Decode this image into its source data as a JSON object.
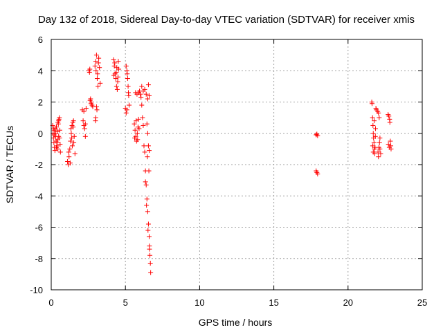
{
  "chart_data": {
    "type": "scatter",
    "title": "Day 132 of 2018, Sidereal Day-to-day VTEC variation (SDTVAR) for receiver xmis",
    "xlabel": "GPS time / hours",
    "ylabel": "SDTVAR / TECUs",
    "xlim": [
      0,
      25
    ],
    "ylim": [
      -10,
      6
    ],
    "xticks": [
      0,
      5,
      10,
      15,
      20,
      25
    ],
    "yticks": [
      -10,
      -8,
      -6,
      -4,
      -2,
      0,
      2,
      4,
      6
    ],
    "xtick_labels": [
      "0",
      "5",
      "10",
      "15",
      "20",
      "25"
    ],
    "ytick_labels": [
      "-10",
      "-8",
      "-6",
      "-4",
      "-2",
      "0",
      "2",
      "4",
      "6"
    ],
    "grid": true,
    "marker": "plus",
    "color": "#ff0000",
    "series": [
      {
        "name": "SDTVAR",
        "points": [
          [
            0.1,
            0.5
          ],
          [
            0.12,
            0.0
          ],
          [
            0.15,
            -0.3
          ],
          [
            0.18,
            -0.6
          ],
          [
            0.2,
            0.2
          ],
          [
            0.22,
            -0.9
          ],
          [
            0.25,
            -1.1
          ],
          [
            0.28,
            0.3
          ],
          [
            0.3,
            -0.2
          ],
          [
            0.33,
            -0.5
          ],
          [
            0.35,
            0.4
          ],
          [
            0.38,
            -0.8
          ],
          [
            0.4,
            0.1
          ],
          [
            0.42,
            -0.4
          ],
          [
            0.45,
            -1.0
          ],
          [
            0.48,
            0.6
          ],
          [
            0.5,
            0.8
          ],
          [
            0.52,
            0.9
          ],
          [
            0.55,
            1.0
          ],
          [
            0.57,
            -0.3
          ],
          [
            0.6,
            -0.7
          ],
          [
            0.62,
            -1.2
          ],
          [
            0.2,
            -0.1
          ],
          [
            0.3,
            0.0
          ],
          [
            0.4,
            -0.6
          ],
          [
            0.5,
            -0.2
          ],
          [
            0.58,
            0.2
          ],
          [
            0.45,
            0.7
          ],
          [
            0.15,
            0.3
          ],
          [
            0.35,
            -0.9
          ],
          [
            1.1,
            -1.8
          ],
          [
            1.15,
            -2.0
          ],
          [
            1.2,
            -1.5
          ],
          [
            1.25,
            -1.0
          ],
          [
            1.3,
            -0.5
          ],
          [
            1.35,
            0.0
          ],
          [
            1.4,
            0.5
          ],
          [
            1.45,
            0.7
          ],
          [
            1.5,
            0.8
          ],
          [
            1.55,
            -0.2
          ],
          [
            1.6,
            -1.3
          ],
          [
            1.28,
            -1.9
          ],
          [
            1.33,
            0.3
          ],
          [
            1.42,
            -0.8
          ],
          [
            1.48,
            0.4
          ],
          [
            1.52,
            -0.6
          ],
          [
            1.18,
            -1.2
          ],
          [
            1.38,
            -0.3
          ],
          [
            2.1,
            1.5
          ],
          [
            2.15,
            0.8
          ],
          [
            2.2,
            0.5
          ],
          [
            2.25,
            0.3
          ],
          [
            2.3,
            -0.2
          ],
          [
            2.35,
            1.6
          ],
          [
            2.2,
            1.4
          ],
          [
            2.3,
            0.6
          ],
          [
            2.55,
            4.0
          ],
          [
            2.58,
            3.9
          ],
          [
            2.6,
            4.1
          ],
          [
            2.65,
            2.2
          ],
          [
            2.7,
            2.0
          ],
          [
            2.75,
            1.8
          ],
          [
            2.8,
            1.7
          ],
          [
            2.68,
            1.9
          ],
          [
            2.62,
            2.1
          ],
          [
            2.95,
            4.3
          ],
          [
            3.0,
            4.6
          ],
          [
            3.05,
            5.0
          ],
          [
            3.1,
            3.5
          ],
          [
            3.15,
            3.0
          ],
          [
            3.05,
            1.7
          ],
          [
            3.0,
            1.0
          ],
          [
            2.98,
            0.8
          ],
          [
            3.08,
            1.5
          ],
          [
            3.12,
            3.8
          ],
          [
            3.2,
            4.8
          ],
          [
            3.25,
            4.2
          ],
          [
            3.3,
            3.2
          ],
          [
            3.02,
            4.0
          ],
          [
            3.18,
            4.5
          ],
          [
            4.2,
            4.7
          ],
          [
            4.25,
            4.3
          ],
          [
            4.3,
            3.8
          ],
          [
            4.35,
            3.5
          ],
          [
            4.4,
            3.0
          ],
          [
            4.45,
            2.8
          ],
          [
            4.5,
            3.6
          ],
          [
            4.55,
            4.1
          ],
          [
            4.28,
            4.5
          ],
          [
            4.38,
            3.9
          ],
          [
            4.48,
            3.3
          ],
          [
            4.52,
            4.6
          ],
          [
            4.22,
            3.7
          ],
          [
            4.42,
            4.2
          ],
          [
            5.05,
            4.3
          ],
          [
            5.1,
            4.0
          ],
          [
            5.15,
            3.5
          ],
          [
            5.18,
            3.0
          ],
          [
            5.2,
            2.6
          ],
          [
            5.25,
            1.8
          ],
          [
            5.0,
            1.6
          ],
          [
            5.05,
            1.3
          ],
          [
            5.1,
            1.5
          ],
          [
            5.12,
            3.8
          ],
          [
            5.22,
            2.4
          ],
          [
            5.6,
            0.6
          ],
          [
            5.65,
            0.2
          ],
          [
            5.7,
            -0.2
          ],
          [
            5.75,
            -0.5
          ],
          [
            5.8,
            0.0
          ],
          [
            5.85,
            0.4
          ],
          [
            5.9,
            2.6
          ],
          [
            5.95,
            2.7
          ],
          [
            6.0,
            2.5
          ],
          [
            5.68,
            2.6
          ],
          [
            5.72,
            0.8
          ],
          [
            5.82,
            -0.4
          ],
          [
            5.88,
            0.9
          ],
          [
            5.62,
            -0.3
          ],
          [
            5.78,
            2.5
          ],
          [
            5.92,
            0.3
          ],
          [
            6.05,
            2.3
          ],
          [
            6.1,
            1.8
          ],
          [
            6.15,
            1.0
          ],
          [
            6.2,
            0.5
          ],
          [
            6.25,
            -0.8
          ],
          [
            6.3,
            -1.2
          ],
          [
            6.35,
            -2.4
          ],
          [
            6.4,
            -3.3
          ],
          [
            6.45,
            -4.2
          ],
          [
            6.5,
            -5.0
          ],
          [
            6.55,
            -5.8
          ],
          [
            6.6,
            -6.6
          ],
          [
            6.62,
            -7.2
          ],
          [
            6.65,
            -7.8
          ],
          [
            6.68,
            -8.3
          ],
          [
            6.7,
            -8.9
          ],
          [
            6.1,
            3.0
          ],
          [
            6.2,
            2.7
          ],
          [
            6.3,
            2.8
          ],
          [
            6.4,
            2.5
          ],
          [
            6.5,
            2.2
          ],
          [
            6.55,
            3.1
          ],
          [
            6.6,
            2.4
          ],
          [
            6.5,
            0.0
          ],
          [
            6.55,
            -0.8
          ],
          [
            6.6,
            -1.1
          ],
          [
            6.45,
            0.6
          ],
          [
            6.58,
            -2.4
          ],
          [
            6.48,
            -1.5
          ],
          [
            6.35,
            -3.1
          ],
          [
            6.42,
            -4.6
          ],
          [
            6.52,
            -6.2
          ],
          [
            6.62,
            -7.4
          ],
          [
            17.85,
            -0.1
          ],
          [
            17.9,
            -0.05
          ],
          [
            17.95,
            -0.15
          ],
          [
            17.85,
            -2.4
          ],
          [
            17.9,
            -2.5
          ],
          [
            17.95,
            -2.6
          ],
          [
            21.6,
            2.0
          ],
          [
            21.62,
            1.9
          ],
          [
            21.65,
            1.0
          ],
          [
            21.68,
            0.5
          ],
          [
            21.7,
            0.0
          ],
          [
            21.72,
            -0.3
          ],
          [
            21.75,
            -0.6
          ],
          [
            21.78,
            -1.0
          ],
          [
            21.8,
            -1.3
          ],
          [
            21.82,
            -0.9
          ],
          [
            21.85,
            0.3
          ],
          [
            21.88,
            1.6
          ],
          [
            21.9,
            1.5
          ],
          [
            21.7,
            -1.2
          ],
          [
            21.76,
            0.8
          ],
          [
            21.84,
            -0.2
          ],
          [
            21.66,
            -0.8
          ],
          [
            22.0,
            1.4
          ],
          [
            22.05,
            1.3
          ],
          [
            22.1,
            1.0
          ],
          [
            22.12,
            -0.6
          ],
          [
            22.15,
            -1.0
          ],
          [
            22.2,
            -1.3
          ],
          [
            22.05,
            -1.5
          ],
          [
            22.08,
            -0.9
          ],
          [
            22.15,
            -0.3
          ],
          [
            22.02,
            -1.2
          ],
          [
            22.7,
            1.2
          ],
          [
            22.75,
            1.1
          ],
          [
            22.8,
            0.9
          ],
          [
            22.82,
            0.7
          ],
          [
            22.85,
            -0.5
          ],
          [
            22.88,
            -0.8
          ],
          [
            22.9,
            -1.0
          ],
          [
            22.72,
            -0.7
          ],
          [
            22.78,
            -0.9
          ]
        ]
      }
    ]
  }
}
